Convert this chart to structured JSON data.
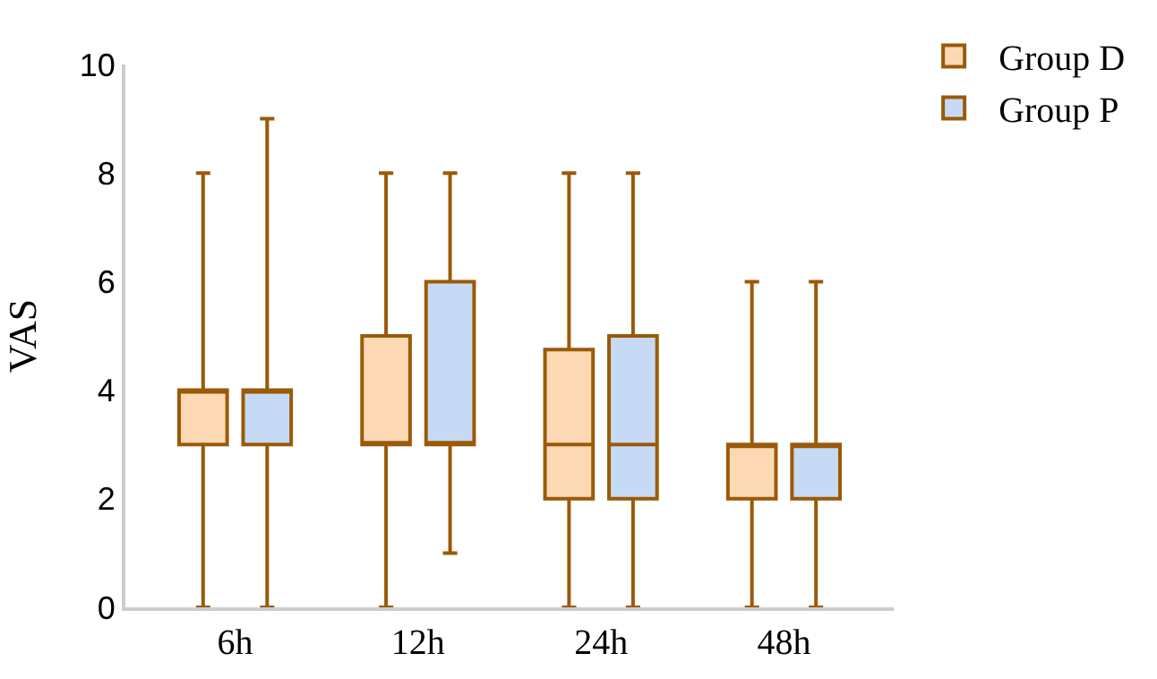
{
  "chart_data": {
    "type": "box",
    "categories": [
      "6h",
      "12h",
      "24h",
      "48h"
    ],
    "ylabel": "VAS",
    "ylim": [
      0,
      10
    ],
    "yticks": [
      0,
      2,
      4,
      6,
      8,
      10
    ],
    "grid": false,
    "legend": "top right",
    "series": [
      {
        "name": "Group D",
        "color": "#fcd9b4",
        "boxes": [
          {
            "low": 0,
            "q1": 3,
            "median": 4,
            "q3": 4,
            "high": 8
          },
          {
            "low": 0,
            "q1": 3,
            "median": 3,
            "q3": 5,
            "high": 8
          },
          {
            "low": 0,
            "q1": 2,
            "median": 3,
            "q3": 4.75,
            "high": 8
          },
          {
            "low": 0,
            "q1": 2,
            "median": 3,
            "q3": 3,
            "high": 6
          }
        ]
      },
      {
        "name": "Group P",
        "color": "#c6daf5",
        "boxes": [
          {
            "low": 0,
            "q1": 3,
            "median": 4,
            "q3": 4,
            "high": 9
          },
          {
            "low": 1,
            "q1": 3,
            "median": 3,
            "q3": 6,
            "high": 8
          },
          {
            "low": 0,
            "q1": 2,
            "median": 3,
            "q3": 5,
            "high": 8
          },
          {
            "low": 0,
            "q1": 2,
            "median": 3,
            "q3": 3,
            "high": 6
          }
        ]
      }
    ]
  }
}
